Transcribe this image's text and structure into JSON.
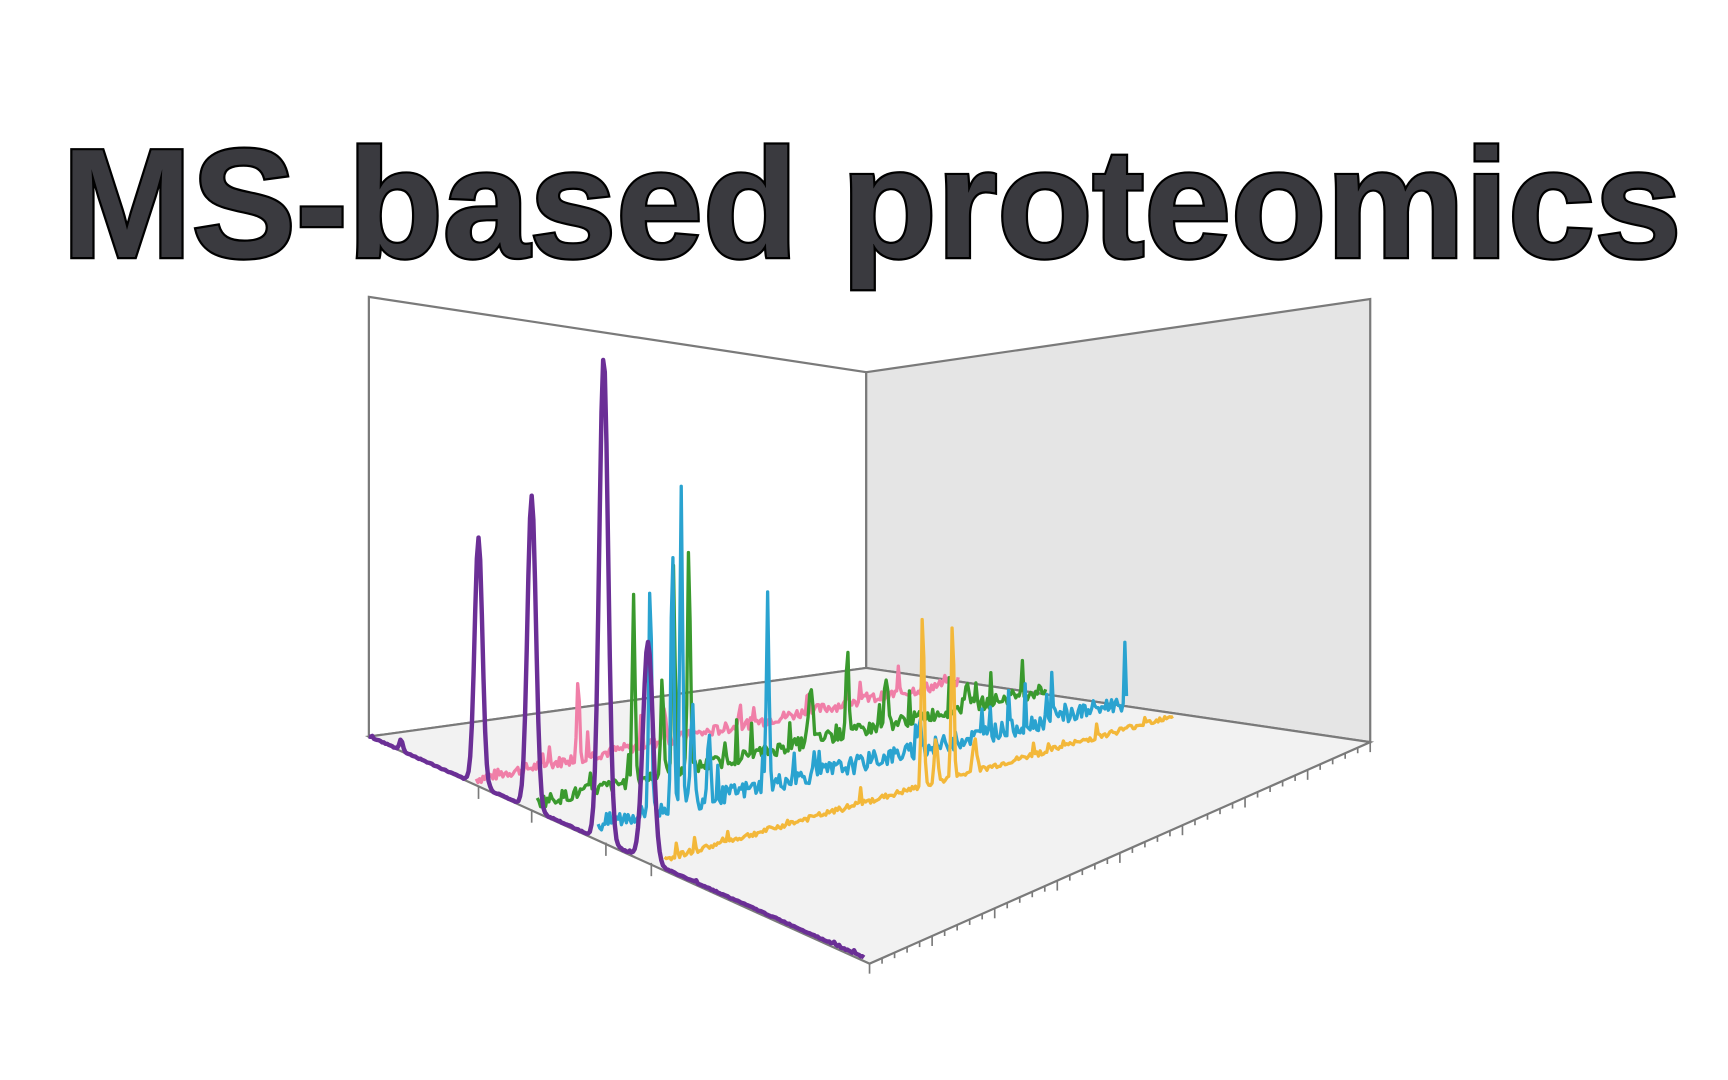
{
  "header": {
    "title": "MS-based proteomics"
  }
}
